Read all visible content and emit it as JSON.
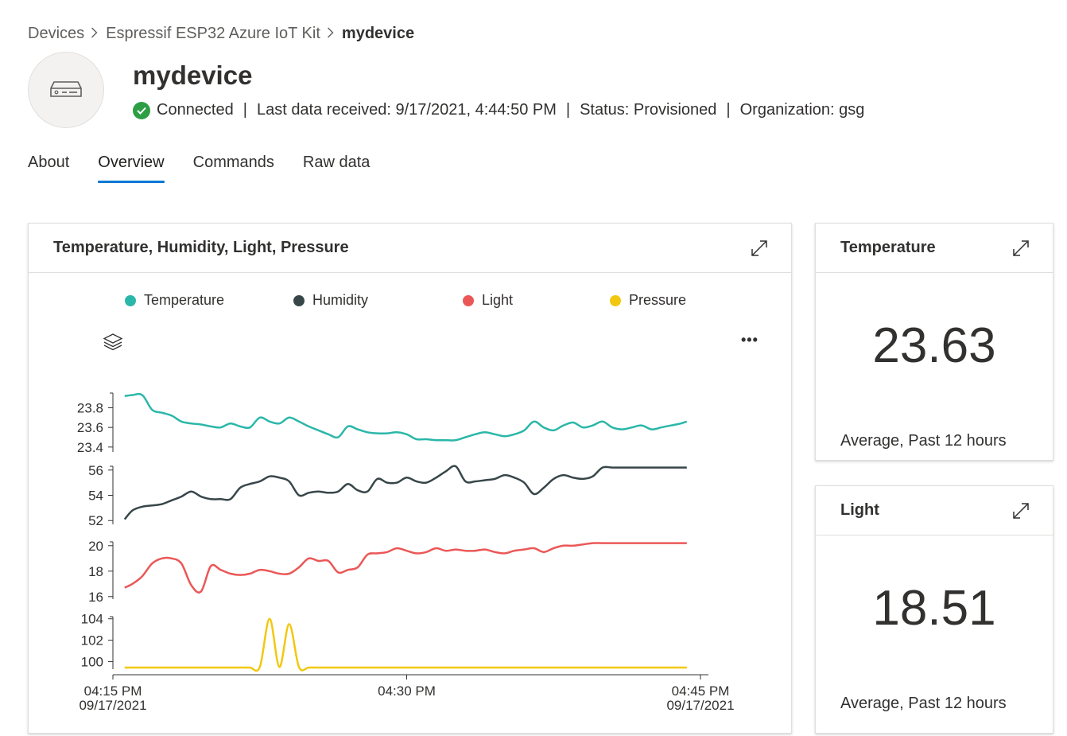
{
  "breadcrumb": {
    "items": [
      "Devices",
      "Espressif ESP32 Azure IoT Kit"
    ],
    "current": "mydevice"
  },
  "device": {
    "name": "mydevice",
    "connection": "Connected",
    "last_data": "Last data received: 9/17/2021, 4:44:50 PM",
    "status": "Status: Provisioned",
    "organization": "Organization: gsg"
  },
  "tabs": [
    {
      "label": "About",
      "active": false
    },
    {
      "label": "Overview",
      "active": true
    },
    {
      "label": "Commands",
      "active": false
    },
    {
      "label": "Raw data",
      "active": false
    }
  ],
  "colors": {
    "accent": "#0078d4",
    "connected": "#2e9e44",
    "temperature": "#2ab7a9",
    "humidity": "#374649",
    "light": "#eb5757",
    "pressure": "#f2c80f"
  },
  "chart_card": {
    "title": "Temperature, Humidity, Light, Pressure",
    "legend": [
      "Temperature",
      "Humidity",
      "Light",
      "Pressure"
    ],
    "more_label": "•••"
  },
  "chart_data": {
    "type": "line",
    "title": "Temperature, Humidity, Light, Pressure",
    "x_ticks": [
      {
        "t": 0,
        "label": "04:15 PM",
        "sub": "09/17/2021"
      },
      {
        "t": 15,
        "label": "04:30 PM",
        "sub": ""
      },
      {
        "t": 30,
        "label": "04:45 PM",
        "sub": "09/17/2021"
      }
    ],
    "x_range_minutes": [
      0,
      30
    ],
    "x": [
      0.6,
      1.0,
      1.5,
      2.0,
      2.5,
      3.0,
      3.5,
      4.0,
      4.5,
      5.0,
      5.5,
      6.0,
      6.5,
      7.0,
      7.5,
      8.0,
      8.5,
      9.0,
      9.5,
      10.0,
      10.5,
      11.0,
      11.5,
      12.0,
      12.5,
      13.0,
      13.5,
      14.0,
      14.5,
      15.0,
      15.5,
      16.0,
      16.5,
      17.0,
      17.5,
      18.0,
      18.5,
      19.0,
      19.5,
      20.0,
      20.5,
      21.0,
      21.5,
      22.0,
      22.5,
      23.0,
      23.5,
      24.0,
      24.5,
      25.0,
      25.5,
      26.0,
      26.5,
      27.0,
      27.5,
      28.0,
      28.5,
      29.0,
      29.3
    ],
    "series": [
      {
        "name": "Temperature",
        "ylim": [
          23.35,
          23.95
        ],
        "ticks": [
          23.4,
          23.6,
          23.8
        ],
        "values": [
          23.92,
          23.93,
          23.93,
          23.78,
          23.75,
          23.72,
          23.66,
          23.64,
          23.63,
          23.61,
          23.6,
          23.64,
          23.61,
          23.6,
          23.7,
          23.66,
          23.64,
          23.7,
          23.66,
          23.61,
          23.57,
          23.53,
          23.5,
          23.61,
          23.58,
          23.55,
          23.54,
          23.54,
          23.55,
          23.53,
          23.48,
          23.48,
          23.47,
          23.47,
          23.47,
          23.5,
          23.53,
          23.55,
          23.53,
          23.51,
          23.53,
          23.57,
          23.66,
          23.6,
          23.57,
          23.62,
          23.65,
          23.6,
          23.62,
          23.66,
          23.6,
          23.58,
          23.6,
          23.62,
          23.58,
          23.6,
          23.62,
          23.64,
          23.66
        ]
      },
      {
        "name": "Humidity",
        "ylim": [
          51.7,
          56.3
        ],
        "ticks": [
          52,
          54,
          56
        ],
        "values": [
          52.1,
          52.8,
          53.1,
          53.2,
          53.3,
          53.6,
          53.9,
          54.3,
          53.9,
          53.7,
          53.7,
          53.7,
          54.6,
          54.9,
          55.1,
          55.5,
          55.4,
          55.1,
          54.0,
          54.2,
          54.3,
          54.2,
          54.3,
          54.9,
          54.4,
          54.3,
          55.3,
          55.0,
          55.0,
          55.4,
          55.1,
          55.0,
          55.4,
          55.9,
          56.3,
          55.1,
          55.1,
          55.2,
          55.3,
          55.6,
          55.4,
          55.0,
          54.1,
          54.6,
          55.3,
          55.6,
          55.4,
          55.3,
          55.5,
          56.2,
          56.2,
          56.2,
          56.2,
          56.2,
          56.2,
          56.2,
          56.2,
          56.2,
          56.2
        ]
      },
      {
        "name": "Light",
        "ylim": [
          15.8,
          20.3
        ],
        "ticks": [
          16,
          18,
          20
        ],
        "values": [
          16.7,
          17.0,
          17.6,
          18.6,
          19.0,
          19.0,
          18.6,
          16.9,
          16.4,
          18.4,
          18.1,
          17.8,
          17.7,
          17.8,
          18.1,
          18.0,
          17.8,
          17.8,
          18.3,
          19.0,
          18.8,
          18.8,
          17.9,
          18.1,
          18.3,
          19.3,
          19.4,
          19.5,
          19.8,
          19.6,
          19.4,
          19.5,
          19.8,
          19.6,
          19.7,
          19.6,
          19.6,
          19.7,
          19.5,
          19.4,
          19.6,
          19.7,
          19.8,
          19.5,
          19.8,
          20.0,
          20.0,
          20.1,
          20.2,
          20.2,
          20.2,
          20.2,
          20.2,
          20.2,
          20.2,
          20.2,
          20.2,
          20.2,
          20.2
        ]
      },
      {
        "name": "Pressure",
        "ylim": [
          99.3,
          104.2
        ],
        "ticks": [
          100,
          102,
          104
        ],
        "values": [
          99.45,
          99.45,
          99.45,
          99.45,
          99.45,
          99.45,
          99.45,
          99.45,
          99.45,
          99.45,
          99.45,
          99.45,
          99.45,
          99.45,
          99.5,
          104.0,
          99.5,
          103.5,
          99.5,
          99.45,
          99.45,
          99.45,
          99.45,
          99.45,
          99.45,
          99.45,
          99.45,
          99.45,
          99.45,
          99.45,
          99.45,
          99.45,
          99.45,
          99.45,
          99.45,
          99.45,
          99.45,
          99.45,
          99.45,
          99.45,
          99.45,
          99.45,
          99.45,
          99.45,
          99.45,
          99.45,
          99.45,
          99.45,
          99.45,
          99.45,
          99.45,
          99.45,
          99.45,
          99.45,
          99.45,
          99.45,
          99.45,
          99.45,
          99.45
        ]
      }
    ],
    "grid": false,
    "legend_position": "top"
  },
  "kpi_temperature": {
    "title": "Temperature",
    "value": "23.63",
    "footer": "Average, Past 12 hours"
  },
  "kpi_light": {
    "title": "Light",
    "value": "18.51",
    "footer": "Average, Past 12 hours"
  }
}
